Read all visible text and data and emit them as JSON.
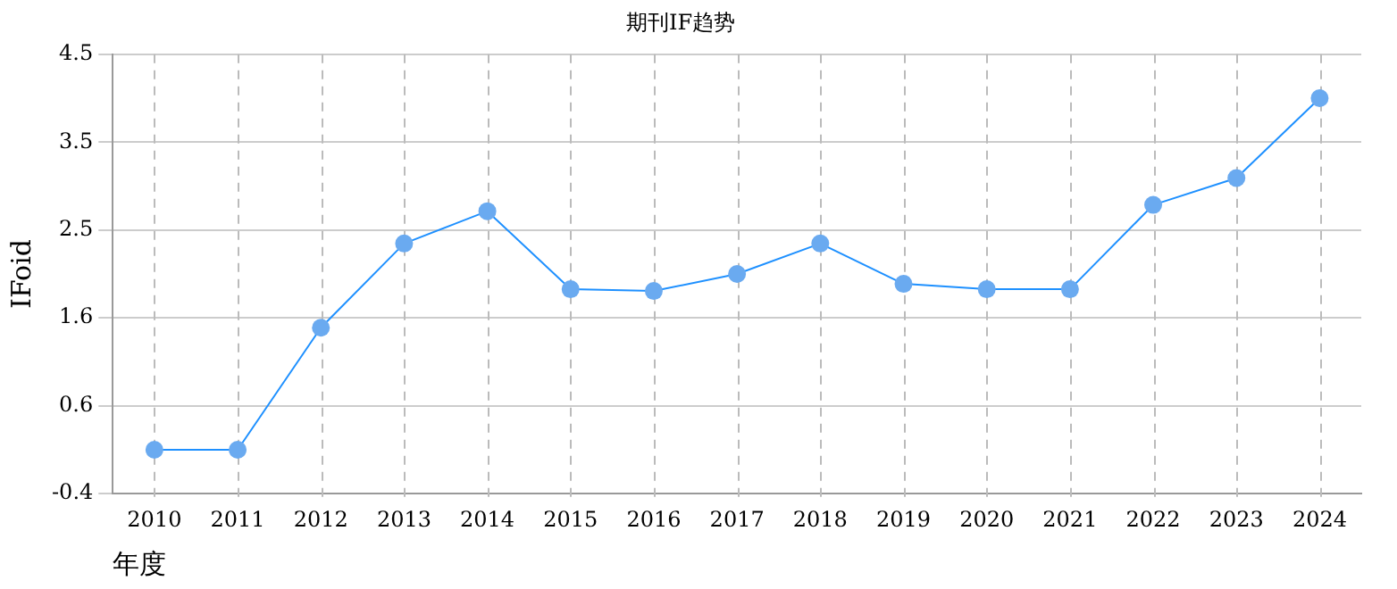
{
  "chart_data": {
    "type": "line",
    "title": "期刊IF趋势",
    "xlabel": "年度",
    "ylabel": "IFoid",
    "categories": [
      "2010",
      "2011",
      "2012",
      "2013",
      "2014",
      "2015",
      "2016",
      "2017",
      "2018",
      "2019",
      "2020",
      "2021",
      "2022",
      "2023",
      "2024"
    ],
    "series": [
      {
        "color": "#1e90ff",
        "values": [
          0.09,
          0.09,
          1.45,
          2.39,
          2.75,
          1.88,
          1.86,
          2.05,
          2.39,
          1.94,
          1.88,
          1.88,
          2.82,
          3.12,
          4.01
        ]
      }
    ],
    "ylim": [
      -0.4,
      4.5
    ],
    "yticks": [
      {
        "value": -0.4,
        "label": "-0.4"
      },
      {
        "value": 0.58,
        "label": "0.6"
      },
      {
        "value": 1.56,
        "label": "1.6"
      },
      {
        "value": 2.54,
        "label": "2.5"
      },
      {
        "value": 3.52,
        "label": "3.5"
      },
      {
        "value": 4.5,
        "label": "4.5"
      }
    ],
    "grid": true,
    "legend": false,
    "marker": "circle",
    "line_style": "solid"
  }
}
